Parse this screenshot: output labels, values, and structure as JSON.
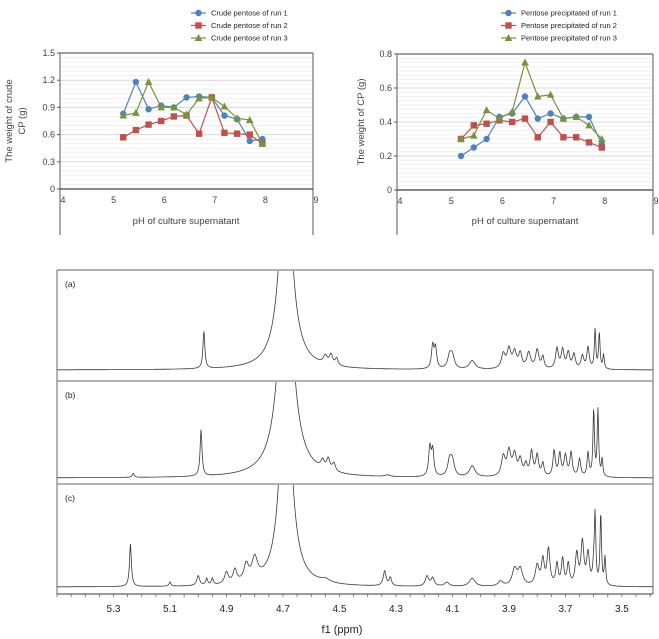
{
  "chart_data": [
    {
      "type": "line",
      "id": "crude",
      "title": "",
      "xlabel": "pH of culture supernatant",
      "ylabel": "The weight of crude CP (g)",
      "ylabel_lines": [
        "The weight of crude",
        "CP (g)"
      ],
      "xlim": [
        4,
        9
      ],
      "ylim": [
        0,
        1.5
      ],
      "x_ticks": [
        4,
        5,
        6,
        7,
        8,
        9
      ],
      "y_ticks": [
        0,
        0.3,
        0.6,
        0.9,
        1.2,
        1.5
      ],
      "y_tick_labels": [
        "0",
        "0.3",
        "0.6",
        "0.9",
        "1.2",
        "1.5"
      ],
      "grid": true,
      "legend_position": "top-right",
      "x": [
        5.25,
        5.5,
        5.75,
        6.0,
        6.25,
        6.5,
        6.75,
        7.0,
        7.25,
        7.5,
        7.75,
        8.0
      ],
      "series": [
        {
          "name": "Crude pentose of run 1",
          "color": "#4F81BD",
          "marker": "circle",
          "values": [
            0.83,
            1.18,
            0.88,
            0.92,
            0.9,
            1.01,
            1.02,
            1.01,
            0.81,
            0.77,
            0.53,
            0.55
          ]
        },
        {
          "name": "Crude pentose of run 2",
          "color": "#C0504D",
          "marker": "square",
          "values": [
            0.57,
            0.65,
            0.71,
            0.75,
            0.8,
            0.81,
            0.61,
            1.01,
            0.62,
            0.61,
            0.6,
            0.5
          ]
        },
        {
          "name": "Crude pentose of run 3",
          "color": "#77933C",
          "marker": "triangle",
          "values": [
            0.81,
            0.84,
            1.18,
            0.9,
            0.9,
            0.82,
            1.0,
            1.01,
            0.91,
            0.78,
            0.76,
            0.5
          ]
        }
      ]
    },
    {
      "type": "line",
      "id": "precip",
      "title": "",
      "xlabel": "pH of culture supernatant",
      "ylabel": "The weight of CP (g)",
      "ylabel_lines": [
        "The weight of CP (g)"
      ],
      "xlim": [
        4,
        9
      ],
      "ylim": [
        0,
        0.8
      ],
      "x_ticks": [
        4,
        5,
        6,
        7,
        8,
        9
      ],
      "y_ticks": [
        0,
        0.2,
        0.4,
        0.6,
        0.8
      ],
      "y_tick_labels": [
        "0",
        "0.2",
        "0.4",
        "0.6",
        "0.8"
      ],
      "grid": true,
      "legend_position": "top-right",
      "x": [
        5.25,
        5.5,
        5.75,
        6.0,
        6.25,
        6.5,
        6.75,
        7.0,
        7.25,
        7.5,
        7.75,
        8.0
      ],
      "series": [
        {
          "name": "Pentose precipitated of run 1",
          "color": "#4F81BD",
          "marker": "circle",
          "values": [
            0.2,
            0.25,
            0.3,
            0.43,
            0.45,
            0.55,
            0.42,
            0.45,
            0.42,
            0.43,
            0.43,
            0.27
          ]
        },
        {
          "name": "Pentose precipitated of run 2",
          "color": "#C0504D",
          "marker": "square",
          "values": [
            0.3,
            0.38,
            0.39,
            0.41,
            0.4,
            0.42,
            0.31,
            0.4,
            0.31,
            0.31,
            0.28,
            0.25
          ]
        },
        {
          "name": "Pentose precipitated of run 3",
          "color": "#77933C",
          "marker": "triangle",
          "values": [
            0.3,
            0.32,
            0.47,
            0.42,
            0.46,
            0.75,
            0.55,
            0.56,
            0.42,
            0.43,
            0.38,
            0.3
          ]
        }
      ]
    },
    {
      "type": "line",
      "id": "nmr",
      "title": "",
      "xlabel": "f1 (ppm)",
      "ylabel": "",
      "xlim": [
        5.5,
        3.39
      ],
      "x_ticks": [
        5.3,
        5.1,
        4.9,
        4.7,
        4.5,
        4.3,
        4.1,
        3.9,
        3.7,
        3.5
      ],
      "x_tick_labels": [
        "5.3",
        "5.1",
        "4.9",
        "4.7",
        "4.5",
        "4.3",
        "4.1",
        "3.9",
        "3.7",
        "3.5"
      ],
      "grid": false,
      "panels": [
        {
          "label": "(a)",
          "peaks": [
            [
              4.98,
              0.52,
              0.004
            ],
            [
              4.69,
              3.0,
              0.025
            ],
            [
              4.55,
              0.11,
              0.008
            ],
            [
              4.53,
              0.14,
              0.007
            ],
            [
              4.51,
              0.1,
              0.006
            ],
            [
              4.17,
              0.32,
              0.005
            ],
            [
              4.16,
              0.28,
              0.005
            ],
            [
              4.11,
              0.18,
              0.008
            ],
            [
              4.1,
              0.17,
              0.008
            ],
            [
              4.03,
              0.12,
              0.012
            ],
            [
              3.92,
              0.2,
              0.008
            ],
            [
              3.9,
              0.26,
              0.008
            ],
            [
              3.88,
              0.22,
              0.008
            ],
            [
              3.86,
              0.2,
              0.007
            ],
            [
              3.83,
              0.22,
              0.008
            ],
            [
              3.8,
              0.26,
              0.007
            ],
            [
              3.78,
              0.16,
              0.005
            ],
            [
              3.73,
              0.28,
              0.006
            ],
            [
              3.71,
              0.26,
              0.006
            ],
            [
              3.69,
              0.22,
              0.006
            ],
            [
              3.67,
              0.2,
              0.006
            ],
            [
              3.64,
              0.18,
              0.006
            ],
            [
              3.62,
              0.3,
              0.005
            ],
            [
              3.595,
              0.55,
              0.003
            ],
            [
              3.58,
              0.5,
              0.003
            ],
            [
              3.565,
              0.2,
              0.003
            ]
          ]
        },
        {
          "label": "(b)",
          "peaks": [
            [
              5.23,
              0.05,
              0.004
            ],
            [
              4.99,
              0.58,
              0.004
            ],
            [
              4.69,
              3.0,
              0.028
            ],
            [
              4.56,
              0.1,
              0.007
            ],
            [
              4.54,
              0.14,
              0.007
            ],
            [
              4.52,
              0.1,
              0.007
            ],
            [
              4.33,
              0.02,
              0.01
            ],
            [
              4.18,
              0.36,
              0.005
            ],
            [
              4.17,
              0.32,
              0.005
            ],
            [
              4.11,
              0.2,
              0.008
            ],
            [
              4.1,
              0.18,
              0.008
            ],
            [
              4.03,
              0.14,
              0.012
            ],
            [
              3.92,
              0.24,
              0.008
            ],
            [
              3.9,
              0.3,
              0.008
            ],
            [
              3.88,
              0.26,
              0.008
            ],
            [
              3.86,
              0.2,
              0.007
            ],
            [
              3.84,
              0.14,
              0.006
            ],
            [
              3.82,
              0.3,
              0.006
            ],
            [
              3.8,
              0.26,
              0.006
            ],
            [
              3.78,
              0.16,
              0.005
            ],
            [
              3.74,
              0.32,
              0.005
            ],
            [
              3.72,
              0.28,
              0.005
            ],
            [
              3.7,
              0.26,
              0.006
            ],
            [
              3.68,
              0.3,
              0.005
            ],
            [
              3.65,
              0.22,
              0.005
            ],
            [
              3.62,
              0.3,
              0.004
            ],
            [
              3.6,
              0.84,
              0.003
            ],
            [
              3.585,
              0.84,
              0.003
            ],
            [
              3.57,
              0.22,
              0.003
            ]
          ]
        },
        {
          "label": "(c)",
          "peaks": [
            [
              5.24,
              0.52,
              0.004
            ],
            [
              5.1,
              0.05,
              0.004
            ],
            [
              5.0,
              0.12,
              0.006
            ],
            [
              4.97,
              0.08,
              0.004
            ],
            [
              4.95,
              0.08,
              0.004
            ],
            [
              4.9,
              0.14,
              0.008
            ],
            [
              4.87,
              0.16,
              0.008
            ],
            [
              4.83,
              0.2,
              0.01
            ],
            [
              4.8,
              0.26,
              0.012
            ],
            [
              4.69,
              3.0,
              0.022
            ],
            [
              4.55,
              0.04,
              0.02
            ],
            [
              4.34,
              0.18,
              0.006
            ],
            [
              4.32,
              0.1,
              0.005
            ],
            [
              4.19,
              0.12,
              0.007
            ],
            [
              4.17,
              0.1,
              0.007
            ],
            [
              4.12,
              0.05,
              0.01
            ],
            [
              4.03,
              0.1,
              0.012
            ],
            [
              3.93,
              0.06,
              0.01
            ],
            [
              3.88,
              0.2,
              0.01
            ],
            [
              3.86,
              0.2,
              0.01
            ],
            [
              3.8,
              0.24,
              0.008
            ],
            [
              3.78,
              0.3,
              0.006
            ],
            [
              3.76,
              0.44,
              0.006
            ],
            [
              3.73,
              0.26,
              0.005
            ],
            [
              3.71,
              0.32,
              0.005
            ],
            [
              3.69,
              0.26,
              0.005
            ],
            [
              3.66,
              0.38,
              0.006
            ],
            [
              3.64,
              0.52,
              0.006
            ],
            [
              3.62,
              0.38,
              0.006
            ],
            [
              3.6,
              0.2,
              0.004
            ],
            [
              3.595,
              0.82,
              0.003
            ],
            [
              3.575,
              0.88,
              0.003
            ],
            [
              3.56,
              0.34,
              0.003
            ]
          ]
        }
      ]
    }
  ]
}
